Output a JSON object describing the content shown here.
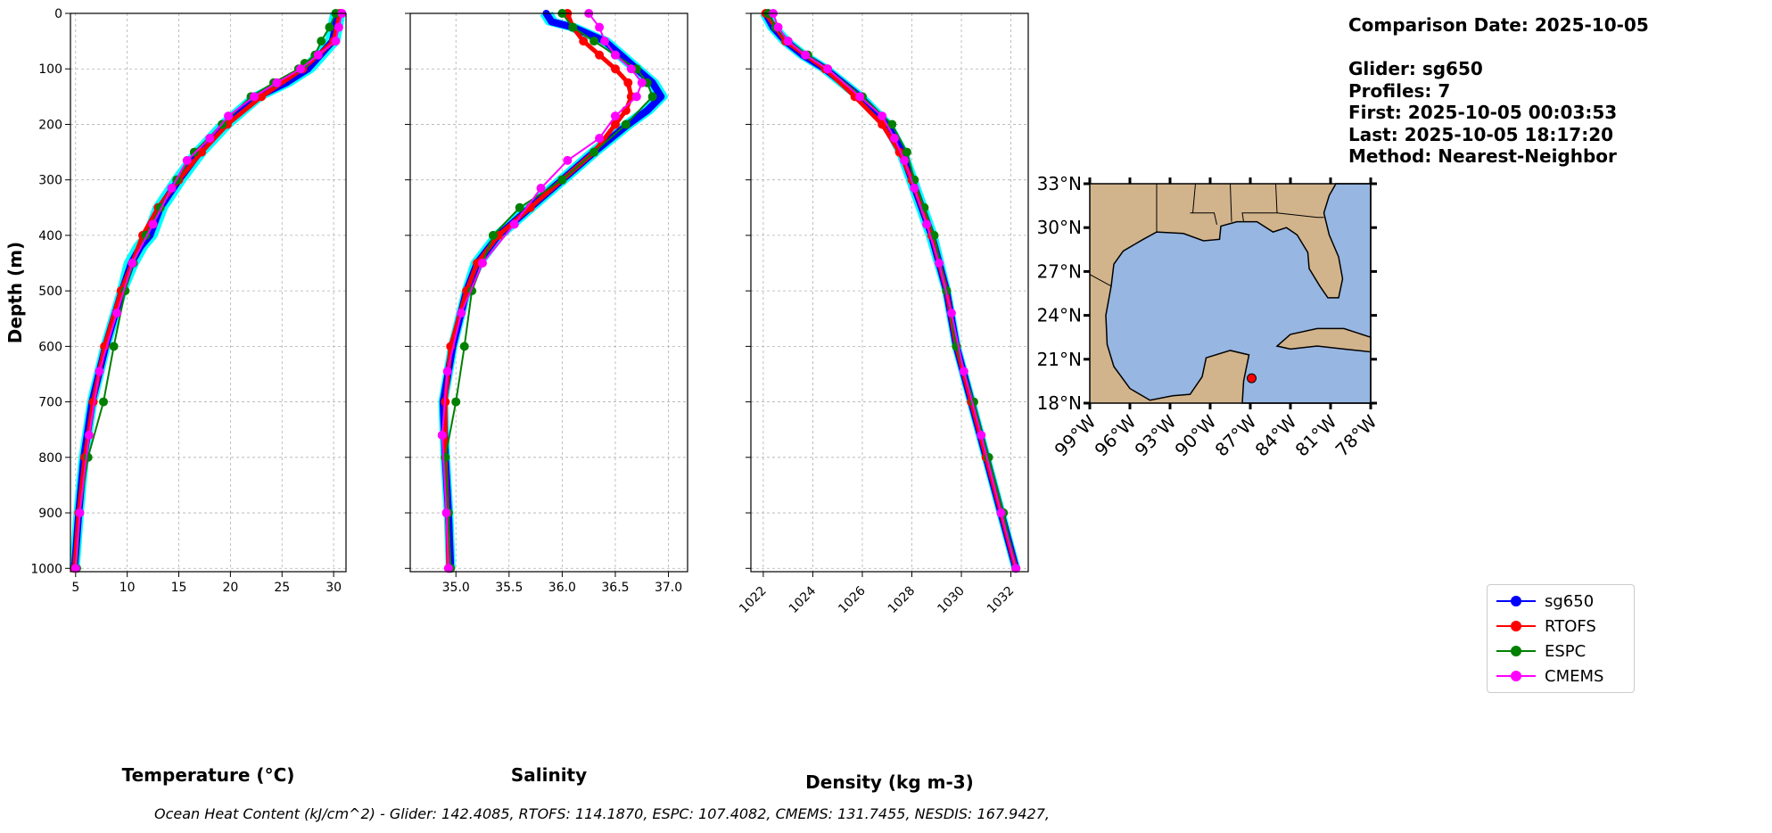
{
  "info": {
    "comparison_date": "Comparison Date: 2025-10-05",
    "glider": "Glider: sg650",
    "profiles": "Profiles: 7",
    "first": "First: 2025-10-05 00:03:53",
    "last": "Last: 2025-10-05 18:17:20",
    "method": "Method: Nearest-Neighbor"
  },
  "caption": "Ocean Heat Content (kJ/cm^2) - Glider: 142.4085,  RTOFS: 114.1870,  ESPC: 107.4082,  CMEMS: 131.7455,  NESDIS: 167.9427,",
  "legend": [
    {
      "name": "sg650",
      "color": "#0000ff"
    },
    {
      "name": "RTOFS",
      "color": "#ff0000"
    },
    {
      "name": "ESPC",
      "color": "#008000"
    },
    {
      "name": "CMEMS",
      "color": "#ff00ff"
    }
  ],
  "colors": {
    "glider_profiles": "#00ffff",
    "land": "#d2b48c",
    "water": "#97b6e1",
    "marker": "#ff0000"
  },
  "chart_data": [
    {
      "type": "line",
      "xlabel": "Temperature (°C)",
      "ylabel": "Depth (m)",
      "xlim": [
        4.5,
        31.2
      ],
      "ylim": [
        1006,
        0
      ],
      "xticks": [
        5,
        10,
        15,
        20,
        25,
        30
      ],
      "yticks": [
        0,
        100,
        200,
        300,
        400,
        500,
        600,
        700,
        800,
        900,
        1000
      ],
      "grid": true,
      "series": [
        {
          "name": "sg650",
          "depth": [
            0,
            50,
            100,
            125,
            150,
            200,
            250,
            300,
            350,
            380,
            400,
            420,
            450,
            500,
            600,
            700,
            800,
            900,
            1000
          ],
          "values": [
            30.4,
            29.9,
            27.5,
            25.4,
            22.6,
            19.5,
            17.0,
            15.0,
            13.2,
            12.6,
            12.2,
            11.3,
            10.4,
            9.5,
            7.9,
            6.6,
            5.8,
            5.3,
            4.9
          ]
        },
        {
          "name": "RTOFS",
          "depth": [
            0,
            50,
            100,
            150,
            200,
            250,
            300,
            350,
            400,
            450,
            500,
            600,
            700,
            800,
            900,
            1000
          ],
          "values": [
            30.6,
            30.0,
            27.0,
            23.0,
            19.7,
            17.2,
            15.0,
            13.0,
            11.5,
            10.5,
            9.4,
            7.8,
            6.7,
            5.9,
            5.3,
            4.9
          ]
        },
        {
          "name": "ESPC",
          "depth": [
            0,
            25,
            50,
            75,
            90,
            100,
            125,
            150,
            200,
            250,
            300,
            350,
            400,
            450,
            500,
            600,
            700,
            800,
            900,
            1000
          ],
          "values": [
            30.2,
            29.6,
            28.8,
            28.2,
            27.2,
            26.6,
            24.2,
            22.0,
            19.2,
            16.5,
            14.8,
            13.2,
            11.8,
            10.6,
            9.8,
            8.7,
            7.7,
            6.2,
            5.4,
            5.1
          ]
        },
        {
          "name": "CMEMS",
          "depth": [
            0,
            25,
            50,
            75,
            100,
            125,
            150,
            185,
            225,
            265,
            315,
            380,
            450,
            540,
            645,
            760,
            900,
            1000
          ],
          "values": [
            30.8,
            30.5,
            30.2,
            28.5,
            26.8,
            24.5,
            22.3,
            19.8,
            18.0,
            15.8,
            14.3,
            12.5,
            10.5,
            9.0,
            7.3,
            6.3,
            5.4,
            5.0
          ]
        }
      ]
    },
    {
      "type": "line",
      "xlabel": "Salinity",
      "xlim": [
        34.57,
        37.18
      ],
      "ylim": [
        1006,
        0
      ],
      "xticks": [
        35.0,
        35.5,
        36.0,
        36.5,
        37.0
      ],
      "xticklabels": [
        "35.0",
        "35.5",
        "36.0",
        "36.5",
        "37.0"
      ],
      "yticks": [
        0,
        100,
        200,
        300,
        400,
        500,
        600,
        700,
        800,
        900,
        1000
      ],
      "grid": true,
      "series": [
        {
          "name": "sg650",
          "depth": [
            0,
            15,
            25,
            50,
            75,
            100,
            125,
            150,
            175,
            200,
            250,
            300,
            350,
            400,
            450,
            500,
            600,
            700,
            800,
            900,
            1000
          ],
          "values": [
            35.85,
            35.9,
            36.1,
            36.4,
            36.55,
            36.7,
            36.85,
            36.93,
            36.8,
            36.62,
            36.3,
            36.0,
            35.7,
            35.4,
            35.2,
            35.1,
            34.97,
            34.88,
            34.9,
            34.93,
            34.95
          ]
        },
        {
          "name": "RTOFS",
          "depth": [
            0,
            25,
            50,
            75,
            100,
            125,
            150,
            175,
            200,
            250,
            300,
            350,
            400,
            450,
            500,
            600,
            700,
            800,
            900,
            1000
          ],
          "values": [
            36.05,
            36.1,
            36.2,
            36.35,
            36.5,
            36.62,
            36.65,
            36.6,
            36.5,
            36.3,
            36.0,
            35.7,
            35.4,
            35.2,
            35.1,
            34.95,
            34.9,
            34.9,
            34.92,
            34.93
          ]
        },
        {
          "name": "ESPC",
          "depth": [
            0,
            25,
            50,
            75,
            100,
            125,
            150,
            200,
            250,
            300,
            350,
            400,
            500,
            600,
            700,
            800,
            900,
            1000
          ],
          "values": [
            36.0,
            36.1,
            36.3,
            36.5,
            36.7,
            36.8,
            36.85,
            36.6,
            36.3,
            36.0,
            35.6,
            35.35,
            35.15,
            35.08,
            35.0,
            34.9,
            34.93,
            34.95
          ]
        },
        {
          "name": "CMEMS",
          "depth": [
            0,
            25,
            50,
            75,
            100,
            125,
            150,
            185,
            225,
            265,
            315,
            380,
            450,
            540,
            645,
            760,
            900,
            1000
          ],
          "values": [
            36.25,
            36.35,
            36.4,
            36.5,
            36.65,
            36.75,
            36.7,
            36.5,
            36.35,
            36.05,
            35.8,
            35.55,
            35.25,
            35.05,
            34.92,
            34.87,
            34.91,
            34.93
          ]
        }
      ]
    },
    {
      "type": "line",
      "xlabel": "Density (kg m-3)",
      "xlim": [
        1021.5,
        1032.7
      ],
      "ylim": [
        1006,
        0
      ],
      "xticks": [
        1022,
        1024,
        1026,
        1028,
        1030,
        1032
      ],
      "yticks": [
        0,
        100,
        200,
        300,
        400,
        500,
        600,
        700,
        800,
        900,
        1000
      ],
      "grid": true,
      "series": [
        {
          "name": "sg650",
          "depth": [
            0,
            25,
            50,
            75,
            100,
            150,
            200,
            250,
            300,
            400,
            500,
            600,
            700,
            800,
            900,
            1000
          ],
          "values": [
            1022.1,
            1022.4,
            1022.9,
            1023.6,
            1024.5,
            1025.9,
            1027.0,
            1027.6,
            1028.0,
            1028.8,
            1029.4,
            1029.8,
            1030.4,
            1031.0,
            1031.6,
            1032.2
          ]
        },
        {
          "name": "RTOFS",
          "depth": [
            0,
            50,
            100,
            150,
            200,
            250,
            300,
            400,
            500,
            600,
            700,
            800,
            900,
            1000
          ],
          "values": [
            1022.1,
            1022.9,
            1024.5,
            1025.7,
            1026.8,
            1027.5,
            1028.0,
            1028.8,
            1029.4,
            1029.8,
            1030.4,
            1031.0,
            1031.6,
            1032.2
          ]
        },
        {
          "name": "ESPC",
          "depth": [
            0,
            25,
            50,
            75,
            100,
            150,
            200,
            250,
            300,
            350,
            400,
            500,
            600,
            700,
            800,
            900,
            1000
          ],
          "values": [
            1022.2,
            1022.5,
            1023.0,
            1023.8,
            1024.6,
            1026.0,
            1027.2,
            1027.8,
            1028.1,
            1028.5,
            1028.9,
            1029.4,
            1029.8,
            1030.5,
            1031.1,
            1031.7,
            1032.2
          ]
        },
        {
          "name": "CMEMS",
          "depth": [
            0,
            25,
            50,
            75,
            100,
            150,
            185,
            225,
            265,
            315,
            380,
            450,
            540,
            645,
            760,
            900,
            1000
          ],
          "values": [
            1022.4,
            1022.6,
            1023.0,
            1023.7,
            1024.6,
            1025.9,
            1026.8,
            1027.3,
            1027.7,
            1028.1,
            1028.6,
            1029.1,
            1029.6,
            1030.1,
            1030.8,
            1031.6,
            1032.2
          ]
        }
      ]
    },
    {
      "type": "map",
      "lon_range": [
        -99,
        -78
      ],
      "lat_range": [
        18,
        33
      ],
      "xticklabels": [
        "99°W",
        "96°W",
        "93°W",
        "90°W",
        "87°W",
        "84°W",
        "81°W",
        "78°W"
      ],
      "yticklabels": [
        "18°N",
        "21°N",
        "24°N",
        "27°N",
        "30°N",
        "33°N"
      ],
      "glider_location": {
        "lon": -86.9,
        "lat": 19.7
      }
    }
  ]
}
